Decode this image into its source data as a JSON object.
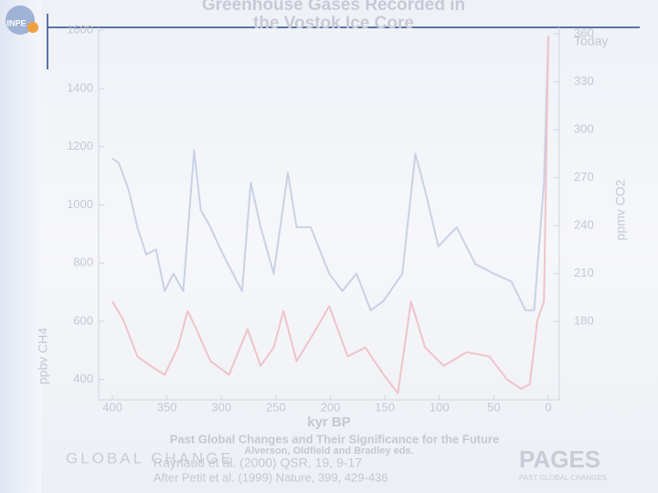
{
  "chart_data": {
    "type": "line",
    "title": "Greenhouse Gases Recorded in the Vostok Ice Core",
    "x_label": "kyr BP",
    "y_label": "ppbv CH4",
    "y2_label": "ppmv CO2",
    "annotation": "Today",
    "xlim": [
      400,
      0
    ],
    "xticks": [
      400,
      350,
      300,
      250,
      200,
      150,
      100,
      50,
      0
    ],
    "ylim": [
      330,
      1610
    ],
    "yticks": [
      400,
      600,
      800,
      1000,
      1200,
      1400,
      1600
    ],
    "y2lim": [
      131,
      364
    ],
    "y2ticks": [
      180,
      210,
      240,
      270,
      300,
      330,
      360
    ],
    "series": [
      {
        "name": "CO2",
        "axis": "y2",
        "color": "#c9d1e6",
        "x": [
          400,
          394,
          385,
          377,
          369,
          360,
          352,
          344,
          335,
          325,
          319,
          310,
          302,
          294,
          281,
          273,
          264,
          252,
          239,
          231,
          218,
          201,
          189,
          176,
          163,
          151,
          134,
          122,
          113,
          101,
          84,
          67,
          50,
          34,
          21,
          13,
          4,
          0
        ],
        "values": [
          282,
          279,
          262,
          239,
          222,
          225,
          199,
          210,
          199,
          287,
          250,
          239,
          227,
          216,
          199,
          267,
          239,
          210,
          273,
          239,
          239,
          210,
          199,
          210,
          187,
          193,
          210,
          285,
          262,
          227,
          239,
          216,
          210,
          205,
          187,
          187,
          267,
          359
        ]
      },
      {
        "name": "CH4",
        "color": "#efc3ca",
        "x": [
          400,
          390,
          377,
          365,
          352,
          340,
          331,
          323,
          310,
          293,
          276,
          264,
          252,
          243,
          231,
          218,
          201,
          184,
          168,
          151,
          138,
          126,
          113,
          96,
          75,
          54,
          38,
          25,
          17,
          10,
          4,
          0
        ],
        "values": [
          668,
          605,
          479,
          447,
          416,
          510,
          636,
          573,
          463,
          416,
          573,
          447,
          510,
          636,
          463,
          542,
          652,
          479,
          510,
          416,
          353,
          668,
          510,
          447,
          494,
          479,
          400,
          368,
          384,
          605,
          668,
          1580
        ]
      }
    ]
  },
  "slide": {
    "source": "Past Global Changes and Their Significance for the Future",
    "editors": "Alverson, Oldfield and Bradley eds.",
    "ref1": "Raynaud et al. (2000) QSR, 19, 9-17",
    "ref2": "After Petit et al. (1999) Nature, 399, 429-436",
    "logo1": "INPE",
    "logo2": "GLOBAL CHANGE",
    "logo3": "PAGES",
    "logo3_sub": "PAST GLOBAL CHANGES"
  }
}
